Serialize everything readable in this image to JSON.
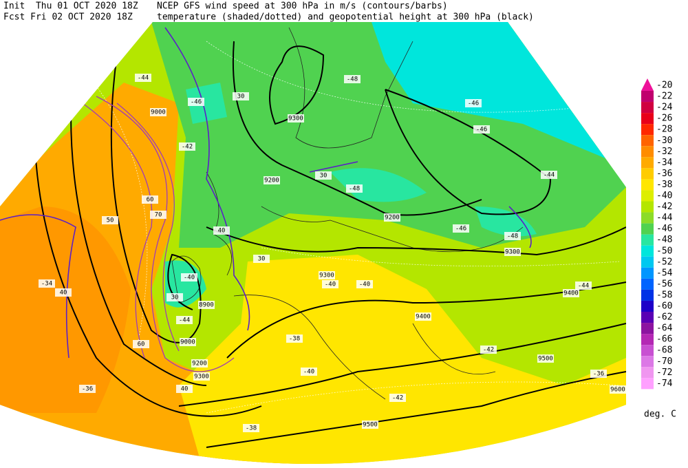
{
  "header": {
    "init": "Init  Thu 01 OCT 2020 18Z",
    "fcst": "Fcst Fri 02 OCT 2020 18Z",
    "title": "NCEP GFS wind speed at 300 hPa in m/s (contours/barbs)",
    "subtitle": "temperature (shaded/dotted) and geopotential height at 300 hPa (black)"
  },
  "colorbar": {
    "unit": "deg. C",
    "levels": [
      -20,
      -22,
      -24,
      -26,
      -28,
      -30,
      -32,
      -34,
      -36,
      -38,
      -40,
      -42,
      -44,
      -46,
      -48,
      -50,
      -52,
      -54,
      -56,
      -58,
      -60,
      -62,
      -64,
      -66,
      -68,
      -70,
      -72,
      -74
    ],
    "colors": [
      "#ee1199",
      "#c0006e",
      "#d00040",
      "#e8001a",
      "#ff2800",
      "#ff6400",
      "#ff8c00",
      "#ffaa00",
      "#ffcc00",
      "#ffe600",
      "#ddee00",
      "#b4e600",
      "#8cdc28",
      "#50d250",
      "#28e6a0",
      "#00e6dc",
      "#00c8f0",
      "#0096ff",
      "#0064ff",
      "#0032e6",
      "#1e00c8",
      "#5a00b4",
      "#8c14a0",
      "#b428b4",
      "#c850d2",
      "#dc78e6",
      "#f096f0",
      "#ffa0ff"
    ]
  },
  "map_labels": [
    "9000",
    "9200",
    "9300",
    "9200",
    "9300",
    "9300",
    "9400",
    "9400",
    "9500",
    "9600",
    "9500",
    "8900",
    "9000",
    "9200",
    "9300",
    "30",
    "30",
    "30",
    "30",
    "40",
    "40",
    "40",
    "50",
    "60",
    "70",
    "60",
    "-44",
    "-46",
    "-48",
    "-46",
    "-46",
    "-48",
    "-46",
    "-48",
    "-44",
    "-42",
    "-40",
    "-44",
    "-40",
    "-40",
    "-40",
    "-42",
    "-38",
    "-36",
    "-36",
    "-38",
    "-42",
    "-44",
    "-34"
  ]
}
